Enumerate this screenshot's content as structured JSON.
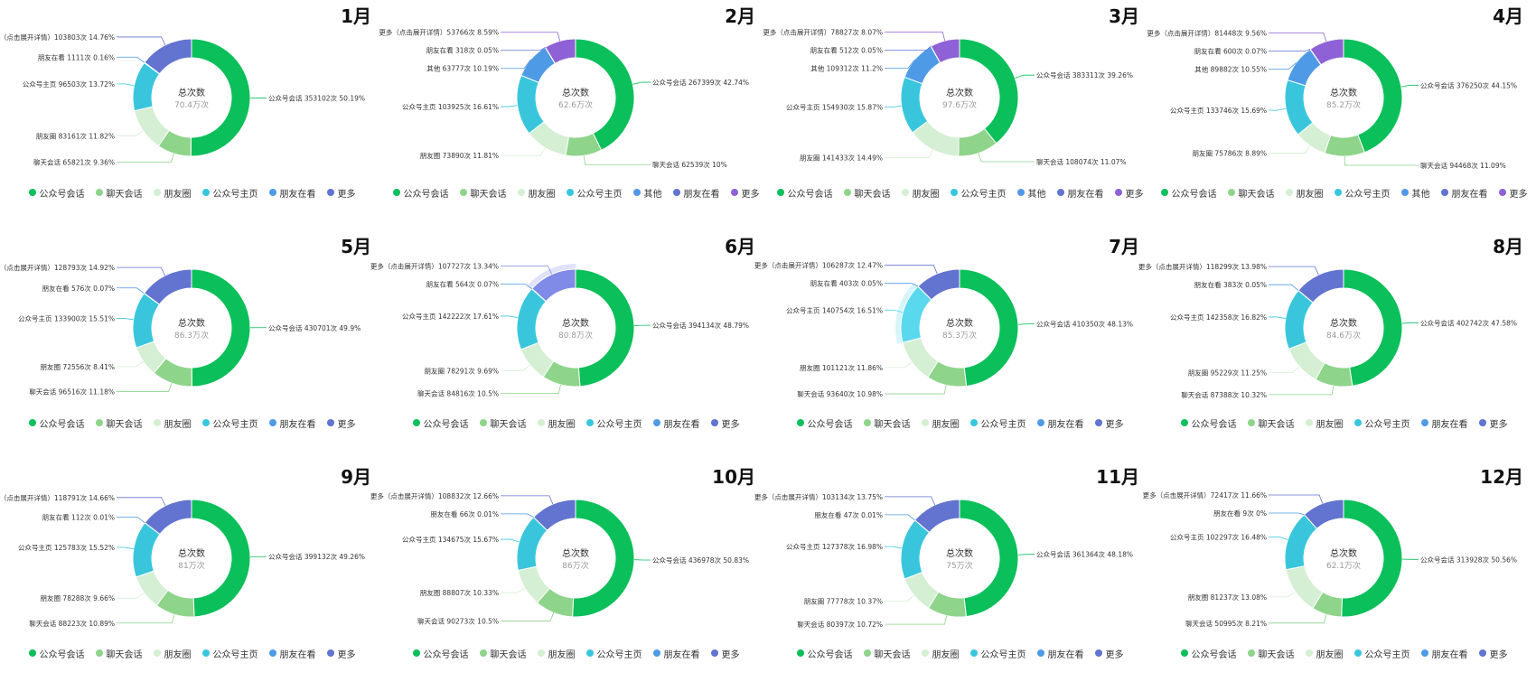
{
  "colors": {
    "公众号会话": "#0bbf5a",
    "聊天会话": "#8ed48a",
    "朋友圈": "#d4efd3",
    "公众号主页": "#39c6dc",
    "其他": "#4f9ae6",
    "朋友在看": "#4f9ae6",
    "更多": "#6273d0",
    "更多2": "#8e62d6"
  },
  "chart_data": [
    {
      "type": "pie",
      "title": "1月",
      "center_title": "总次数",
      "center_value": "70.4万次",
      "legend": [
        "公众号会话",
        "聊天会话",
        "朋友圈",
        "公众号主页",
        "朋友在看",
        "更多"
      ],
      "slices": [
        {
          "name": "公众号会话",
          "value": 353102,
          "pct": 50.19,
          "label": "公众号会话 353102次 50.19%",
          "color": "#0bbf5a"
        },
        {
          "name": "聊天会话",
          "value": 65821,
          "pct": 9.36,
          "label": "聊天会话 65821次 9.36%",
          "color": "#8ed48a"
        },
        {
          "name": "朋友圈",
          "value": 83161,
          "pct": 11.82,
          "label": "朋友圈 83161次 11.82%",
          "color": "#d4efd3"
        },
        {
          "name": "公众号主页",
          "value": 96503,
          "pct": 13.72,
          "label": "公众号主页 96503次 13.72%",
          "color": "#39c6dc"
        },
        {
          "name": "朋友在看",
          "value": 1111,
          "pct": 0.16,
          "label": "朋友在看 1111次 0.16%",
          "color": "#4f9ae6"
        },
        {
          "name": "更多",
          "value": 103803,
          "pct": 14.76,
          "label": "更多（点击展开详情）103803次 14.76%",
          "color": "#6273d0"
        }
      ]
    },
    {
      "type": "pie",
      "title": "2月",
      "center_title": "总次数",
      "center_value": "62.6万次",
      "legend": [
        "公众号会话",
        "聊天会话",
        "朋友圈",
        "公众号主页",
        "其他",
        "朋友在看",
        "更多"
      ],
      "slices": [
        {
          "name": "公众号会话",
          "value": 267399,
          "pct": 42.74,
          "label": "公众号会话 267399次 42.74%",
          "color": "#0bbf5a"
        },
        {
          "name": "聊天会话",
          "value": 62539,
          "pct": 10,
          "label": "聊天会话 62539次 10%",
          "color": "#8ed48a"
        },
        {
          "name": "朋友圈",
          "value": 73890,
          "pct": 11.81,
          "label": "朋友圈 73890次 11.81%",
          "color": "#d4efd3"
        },
        {
          "name": "公众号主页",
          "value": 103925,
          "pct": 16.61,
          "label": "公众号主页 103925次 16.61%",
          "color": "#39c6dc"
        },
        {
          "name": "其他",
          "value": 63777,
          "pct": 10.19,
          "label": "其他 63777次 10.19%",
          "color": "#4f9ae6"
        },
        {
          "name": "朋友在看",
          "value": 318,
          "pct": 0.05,
          "label": "朋友在看 318次 0.05%",
          "color": "#6273d0"
        },
        {
          "name": "更多",
          "value": 53766,
          "pct": 8.59,
          "label": "更多（点击展开详情）53766次 8.59%",
          "color": "#8e62d6"
        }
      ]
    },
    {
      "type": "pie",
      "title": "3月",
      "center_title": "总次数",
      "center_value": "97.6万次",
      "legend": [
        "公众号会话",
        "聊天会话",
        "朋友圈",
        "公众号主页",
        "其他",
        "朋友在看",
        "更多"
      ],
      "slices": [
        {
          "name": "公众号会话",
          "value": 383311,
          "pct": 39.26,
          "label": "公众号会话 383311次 39.26%",
          "color": "#0bbf5a"
        },
        {
          "name": "聊天会话",
          "value": 108074,
          "pct": 11.07,
          "label": "聊天会话 108074次 11.07%",
          "color": "#8ed48a"
        },
        {
          "name": "朋友圈",
          "value": 141433,
          "pct": 14.49,
          "label": "朋友圈 141433次 14.49%",
          "color": "#d4efd3"
        },
        {
          "name": "公众号主页",
          "value": 154930,
          "pct": 15.87,
          "label": "公众号主页 154930次 15.87%",
          "color": "#39c6dc"
        },
        {
          "name": "其他",
          "value": 109312,
          "pct": 11.2,
          "label": "其他 109312次 11.2%",
          "color": "#4f9ae6"
        },
        {
          "name": "朋友在看",
          "value": 512,
          "pct": 0.05,
          "label": "朋友在看 512次 0.05%",
          "color": "#6273d0"
        },
        {
          "name": "更多",
          "value": 78827,
          "pct": 8.07,
          "label": "更多（点击展开详情）78827次 8.07%",
          "color": "#8e62d6"
        }
      ]
    },
    {
      "type": "pie",
      "title": "4月",
      "center_title": "总次数",
      "center_value": "85.2万次",
      "legend": [
        "公众号会话",
        "聊天会话",
        "朋友圈",
        "公众号主页",
        "其他",
        "朋友在看",
        "更多"
      ],
      "slices": [
        {
          "name": "公众号会话",
          "value": 376250,
          "pct": 44.15,
          "label": "公众号会话 376250次 44.15%",
          "color": "#0bbf5a"
        },
        {
          "name": "聊天会话",
          "value": 94468,
          "pct": 11.09,
          "label": "聊天会话 94468次 11.09%",
          "color": "#8ed48a"
        },
        {
          "name": "朋友圈",
          "value": 75786,
          "pct": 8.89,
          "label": "朋友圈 75786次 8.89%",
          "color": "#d4efd3"
        },
        {
          "name": "公众号主页",
          "value": 133746,
          "pct": 15.69,
          "label": "公众号主页 133746次 15.69%",
          "color": "#39c6dc"
        },
        {
          "name": "其他",
          "value": 89882,
          "pct": 10.55,
          "label": "其他 89882次 10.55%",
          "color": "#4f9ae6"
        },
        {
          "name": "朋友在看",
          "value": 600,
          "pct": 0.07,
          "label": "朋友在看 600次 0.07%",
          "color": "#6273d0"
        },
        {
          "name": "更多",
          "value": 81448,
          "pct": 9.56,
          "label": "更多（点击展开详情）81448次 9.56%",
          "color": "#8e62d6"
        }
      ]
    },
    {
      "type": "pie",
      "title": "5月",
      "center_title": "总次数",
      "center_value": "86.3万次",
      "legend": [
        "公众号会话",
        "聊天会话",
        "朋友圈",
        "公众号主页",
        "朋友在看",
        "更多"
      ],
      "slices": [
        {
          "name": "公众号会话",
          "value": 430701,
          "pct": 49.9,
          "label": "公众号会话 430701次 49.9%",
          "color": "#0bbf5a"
        },
        {
          "name": "聊天会话",
          "value": 96516,
          "pct": 11.18,
          "label": "聊天会话 96516次 11.18%",
          "color": "#8ed48a"
        },
        {
          "name": "朋友圈",
          "value": 72556,
          "pct": 8.41,
          "label": "朋友圈 72556次 8.41%",
          "color": "#d4efd3"
        },
        {
          "name": "公众号主页",
          "value": 133900,
          "pct": 15.51,
          "label": "公众号主页 133900次 15.51%",
          "color": "#39c6dc"
        },
        {
          "name": "朋友在看",
          "value": 576,
          "pct": 0.07,
          "label": "朋友在看 576次 0.07%",
          "color": "#4f9ae6"
        },
        {
          "name": "更多",
          "value": 128793,
          "pct": 14.92,
          "label": "更多（点击展开详情）128793次 14.92%",
          "color": "#6273d0"
        }
      ]
    },
    {
      "type": "pie",
      "title": "6月",
      "center_title": "总次数",
      "center_value": "80.8万次",
      "legend": [
        "公众号会话",
        "聊天会话",
        "朋友圈",
        "公众号主页",
        "朋友在看",
        "更多"
      ],
      "slices": [
        {
          "name": "公众号会话",
          "value": 394134,
          "pct": 48.79,
          "label": "公众号会话 394134次 48.79%",
          "color": "#0bbf5a"
        },
        {
          "name": "聊天会话",
          "value": 84816,
          "pct": 10.5,
          "label": "聊天会话 84816次 10.5%",
          "color": "#8ed48a"
        },
        {
          "name": "朋友圈",
          "value": 78291,
          "pct": 9.69,
          "label": "朋友圈 78291次 9.69%",
          "color": "#d4efd3"
        },
        {
          "name": "公众号主页",
          "value": 142222,
          "pct": 17.61,
          "label": "公众号主页 142222次 17.61%",
          "color": "#39c6dc"
        },
        {
          "name": "朋友在看",
          "value": 564,
          "pct": 0.07,
          "label": "朋友在看 564次 0.07%",
          "color": "#4f9ae6"
        },
        {
          "name": "更多",
          "value": 107727,
          "pct": 13.34,
          "label": "更多（点击展开详情）107727次 13.34%",
          "color": "#7f8be6",
          "highlight": true
        }
      ]
    },
    {
      "type": "pie",
      "title": "7月",
      "center_title": "总次数",
      "center_value": "85.3万次",
      "legend": [
        "公众号会话",
        "聊天会话",
        "朋友圈",
        "公众号主页",
        "朋友在看",
        "更多"
      ],
      "slices": [
        {
          "name": "公众号会话",
          "value": 410350,
          "pct": 48.13,
          "label": "公众号会话 410350次 48.13%",
          "color": "#0bbf5a"
        },
        {
          "name": "聊天会话",
          "value": 93640,
          "pct": 10.98,
          "label": "聊天会话 93640次 10.98%",
          "color": "#8ed48a"
        },
        {
          "name": "朋友圈",
          "value": 101121,
          "pct": 11.86,
          "label": "朋友圈 101121次 11.86%",
          "color": "#d4efd3"
        },
        {
          "name": "公众号主页",
          "value": 140754,
          "pct": 16.51,
          "label": "公众号主页 140754次 16.51%",
          "color": "#5ad8ee",
          "highlight": true
        },
        {
          "name": "朋友在看",
          "value": 403,
          "pct": 0.05,
          "label": "朋友在看 403次 0.05%",
          "color": "#4f9ae6"
        },
        {
          "name": "更多",
          "value": 106287,
          "pct": 12.47,
          "label": "更多（点击展开详情）106287次 12.47%",
          "color": "#6273d0"
        }
      ]
    },
    {
      "type": "pie",
      "title": "8月",
      "center_title": "总次数",
      "center_value": "84.6万次",
      "legend": [
        "公众号会话",
        "聊天会话",
        "朋友圈",
        "公众号主页",
        "朋友在看",
        "更多"
      ],
      "slices": [
        {
          "name": "公众号会话",
          "value": 402742,
          "pct": 47.58,
          "label": "公众号会话 402742次 47.58%",
          "color": "#0bbf5a"
        },
        {
          "name": "聊天会话",
          "value": 87388,
          "pct": 10.32,
          "label": "聊天会话 87388次 10.32%",
          "color": "#8ed48a"
        },
        {
          "name": "朋友圈",
          "value": 95229,
          "pct": 11.25,
          "label": "朋友圈 95229次 11.25%",
          "color": "#d4efd3"
        },
        {
          "name": "公众号主页",
          "value": 142358,
          "pct": 16.82,
          "label": "公众号主页 142358次 16.82%",
          "color": "#39c6dc"
        },
        {
          "name": "朋友在看",
          "value": 383,
          "pct": 0.05,
          "label": "朋友在看 383次 0.05%",
          "color": "#4f9ae6"
        },
        {
          "name": "更多",
          "value": 118299,
          "pct": 13.98,
          "label": "更多（点击展开详情）118299次 13.98%",
          "color": "#6273d0"
        }
      ]
    },
    {
      "type": "pie",
      "title": "9月",
      "center_title": "总次数",
      "center_value": "81万次",
      "legend": [
        "公众号会话",
        "聊天会话",
        "朋友圈",
        "公众号主页",
        "朋友在看",
        "更多"
      ],
      "slices": [
        {
          "name": "公众号会话",
          "value": 399132,
          "pct": 49.26,
          "label": "公众号会话 399132次 49.26%",
          "color": "#0bbf5a"
        },
        {
          "name": "聊天会话",
          "value": 88223,
          "pct": 10.89,
          "label": "聊天会话 88223次 10.89%",
          "color": "#8ed48a"
        },
        {
          "name": "朋友圈",
          "value": 78288,
          "pct": 9.66,
          "label": "朋友圈 78288次 9.66%",
          "color": "#d4efd3"
        },
        {
          "name": "公众号主页",
          "value": 125783,
          "pct": 15.52,
          "label": "公众号主页 125783次 15.52%",
          "color": "#39c6dc"
        },
        {
          "name": "朋友在看",
          "value": 112,
          "pct": 0.01,
          "label": "朋友在看 112次 0.01%",
          "color": "#4f9ae6"
        },
        {
          "name": "更多",
          "value": 118791,
          "pct": 14.66,
          "label": "更多（点击展开详情）118791次 14.66%",
          "color": "#6273d0"
        }
      ]
    },
    {
      "type": "pie",
      "title": "10月",
      "center_title": "总次数",
      "center_value": "86万次",
      "legend": [
        "公众号会话",
        "聊天会话",
        "朋友圈",
        "公众号主页",
        "朋友在看",
        "更多"
      ],
      "slices": [
        {
          "name": "公众号会话",
          "value": 436978,
          "pct": 50.83,
          "label": "公众号会话 436978次 50.83%",
          "color": "#0bbf5a"
        },
        {
          "name": "聊天会话",
          "value": 90273,
          "pct": 10.5,
          "label": "聊天会话 90273次 10.5%",
          "color": "#8ed48a"
        },
        {
          "name": "朋友圈",
          "value": 88807,
          "pct": 10.33,
          "label": "朋友圈 88807次 10.33%",
          "color": "#d4efd3"
        },
        {
          "name": "公众号主页",
          "value": 134675,
          "pct": 15.67,
          "label": "公众号主页 134675次 15.67%",
          "color": "#39c6dc"
        },
        {
          "name": "朋友在看",
          "value": 66,
          "pct": 0.01,
          "label": "朋友在看 66次 0.01%",
          "color": "#4f9ae6"
        },
        {
          "name": "更多",
          "value": 108832,
          "pct": 12.66,
          "label": "更多（点击展开详情）108832次 12.66%",
          "color": "#6273d0"
        }
      ]
    },
    {
      "type": "pie",
      "title": "11月",
      "center_title": "总次数",
      "center_value": "75万次",
      "legend": [
        "公众号会话",
        "聊天会话",
        "朋友圈",
        "公众号主页",
        "朋友在看",
        "更多"
      ],
      "slices": [
        {
          "name": "公众号会话",
          "value": 361364,
          "pct": 48.18,
          "label": "公众号会话 361364次 48.18%",
          "color": "#0bbf5a"
        },
        {
          "name": "聊天会话",
          "value": 80397,
          "pct": 10.72,
          "label": "聊天会话 80397次 10.72%",
          "color": "#8ed48a"
        },
        {
          "name": "朋友圈",
          "value": 77778,
          "pct": 10.37,
          "label": "朋友圈 77778次 10.37%",
          "color": "#d4efd3"
        },
        {
          "name": "公众号主页",
          "value": 127378,
          "pct": 16.98,
          "label": "公众号主页 127378次 16.98%",
          "color": "#39c6dc"
        },
        {
          "name": "朋友在看",
          "value": 47,
          "pct": 0.01,
          "label": "朋友在看 47次 0.01%",
          "color": "#4f9ae6"
        },
        {
          "name": "更多",
          "value": 103134,
          "pct": 13.75,
          "label": "更多（点击展开详情）103134次 13.75%",
          "color": "#6273d0"
        }
      ]
    },
    {
      "type": "pie",
      "title": "12月",
      "center_title": "总次数",
      "center_value": "62.1万次",
      "legend": [
        "公众号会话",
        "聊天会话",
        "朋友圈",
        "公众号主页",
        "朋友在看",
        "更多"
      ],
      "slices": [
        {
          "name": "公众号会话",
          "value": 313928,
          "pct": 50.56,
          "label": "公众号会话 313928次 50.56%",
          "color": "#0bbf5a"
        },
        {
          "name": "聊天会话",
          "value": 50995,
          "pct": 8.21,
          "label": "聊天会话 50995次 8.21%",
          "color": "#8ed48a"
        },
        {
          "name": "朋友圈",
          "value": 81237,
          "pct": 13.08,
          "label": "朋友圈 81237次 13.08%",
          "color": "#d4efd3"
        },
        {
          "name": "公众号主页",
          "value": 102297,
          "pct": 16.48,
          "label": "公众号主页 102297次 16.48%",
          "color": "#39c6dc"
        },
        {
          "name": "朋友在看",
          "value": 9,
          "pct": 0,
          "label": "朋友在看 9次 0%",
          "color": "#4f9ae6"
        },
        {
          "name": "更多",
          "value": 72417,
          "pct": 11.66,
          "label": "更多（点击展开详情）72417次 11.66%",
          "color": "#6273d0"
        }
      ]
    }
  ]
}
